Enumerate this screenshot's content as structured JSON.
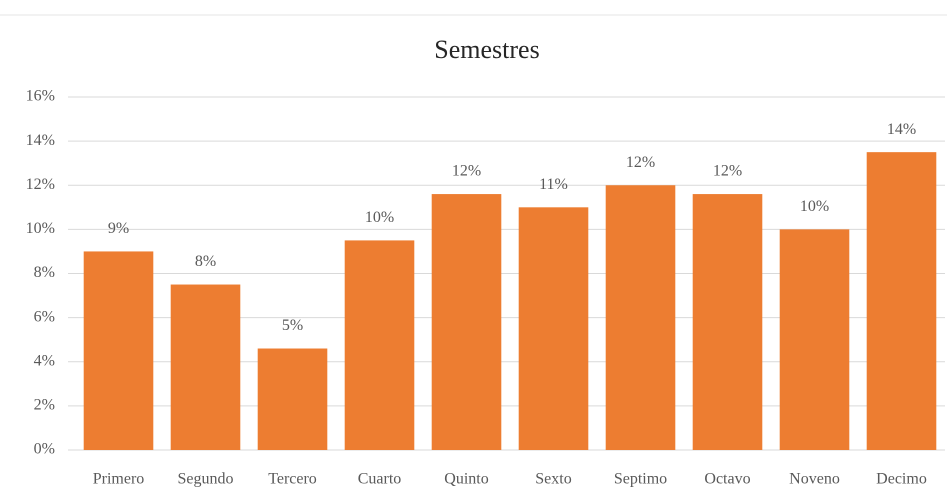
{
  "chart_data": {
    "type": "bar",
    "title": "Semestres",
    "categories": [
      "Primero",
      "Segundo",
      "Tercero",
      "Cuarto",
      "Quinto",
      "Sexto",
      "Septimo",
      "Octavo",
      "Noveno",
      "Decimo"
    ],
    "values": [
      9.0,
      7.5,
      4.6,
      9.5,
      11.6,
      11.0,
      12.0,
      11.6,
      10.0,
      13.5
    ],
    "value_labels": [
      "9%",
      "8%",
      "5%",
      "10%",
      "12%",
      "11%",
      "12%",
      "12%",
      "10%",
      "14%"
    ],
    "color": "#ed7d31",
    "ylim": [
      0,
      16
    ],
    "yticks": [
      {
        "value": 0,
        "label": "0%"
      },
      {
        "value": 2,
        "label": "2%"
      },
      {
        "value": 4,
        "label": "4%"
      },
      {
        "value": 6,
        "label": "6%"
      },
      {
        "value": 8,
        "label": "8%"
      },
      {
        "value": 10,
        "label": "10%"
      },
      {
        "value": 12,
        "label": "12%"
      },
      {
        "value": 14,
        "label": "14%"
      },
      {
        "value": 16,
        "label": "16%"
      }
    ],
    "grid": true
  }
}
